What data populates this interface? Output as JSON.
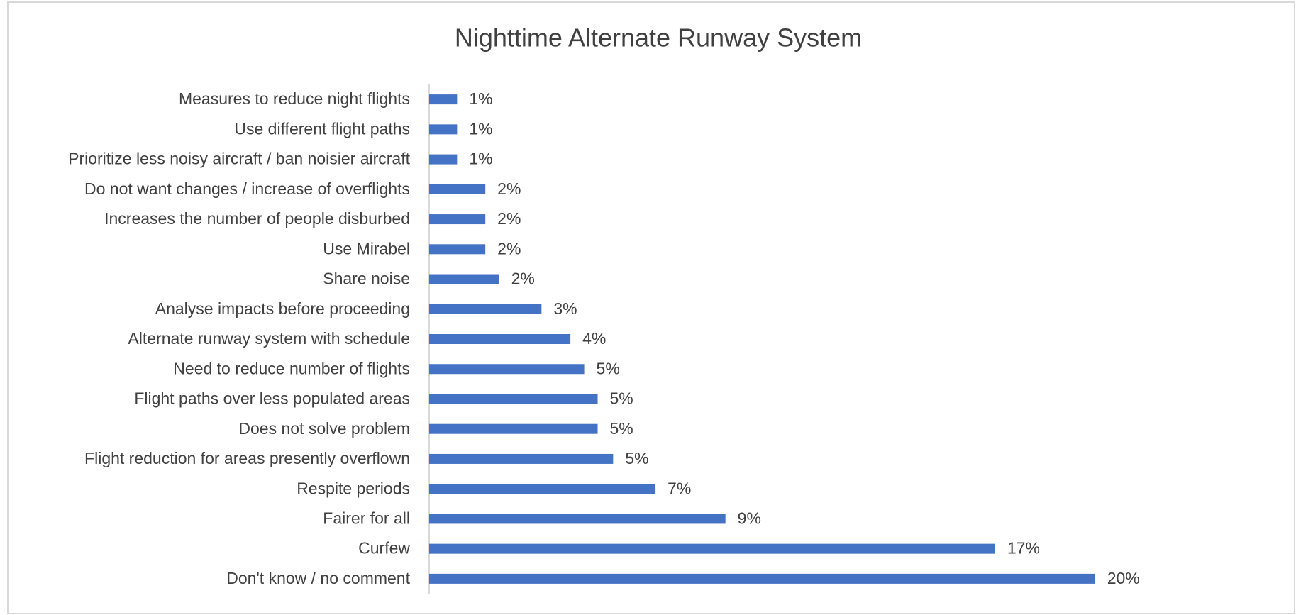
{
  "chart_data": {
    "type": "barh",
    "title": "Nighttime Alternate Runway System",
    "categories": [
      "Measures to reduce night flights",
      "Use different flight paths",
      "Prioritize less noisy aircraft / ban noisier aircraft",
      "Do not want changes / increase of overflights",
      "Increases the number of people disburbed",
      "Use Mirabel",
      "Share noise",
      "Analyse impacts before proceeding",
      "Alternate runway system with schedule",
      "Need to reduce number of flights",
      "Flight paths over less populated areas",
      "Does not solve problem",
      "Flight reduction for areas presently overflown",
      "Respite periods",
      "Fairer for all",
      "Curfew",
      "Don't know / no comment"
    ],
    "values": [
      0.83,
      0.83,
      0.83,
      1.67,
      1.67,
      1.67,
      2.08,
      3.34,
      4.2,
      4.61,
      5.01,
      5.01,
      5.47,
      6.73,
      8.81,
      16.83,
      19.8
    ],
    "value_labels": [
      "1%",
      "1%",
      "1%",
      "2%",
      "2%",
      "2%",
      "2%",
      "3%",
      "4%",
      "5%",
      "5%",
      "5%",
      "5%",
      "7%",
      "9%",
      "17%",
      "20%"
    ],
    "color": "#4472c4",
    "xlim": [
      0,
      22
    ]
  }
}
